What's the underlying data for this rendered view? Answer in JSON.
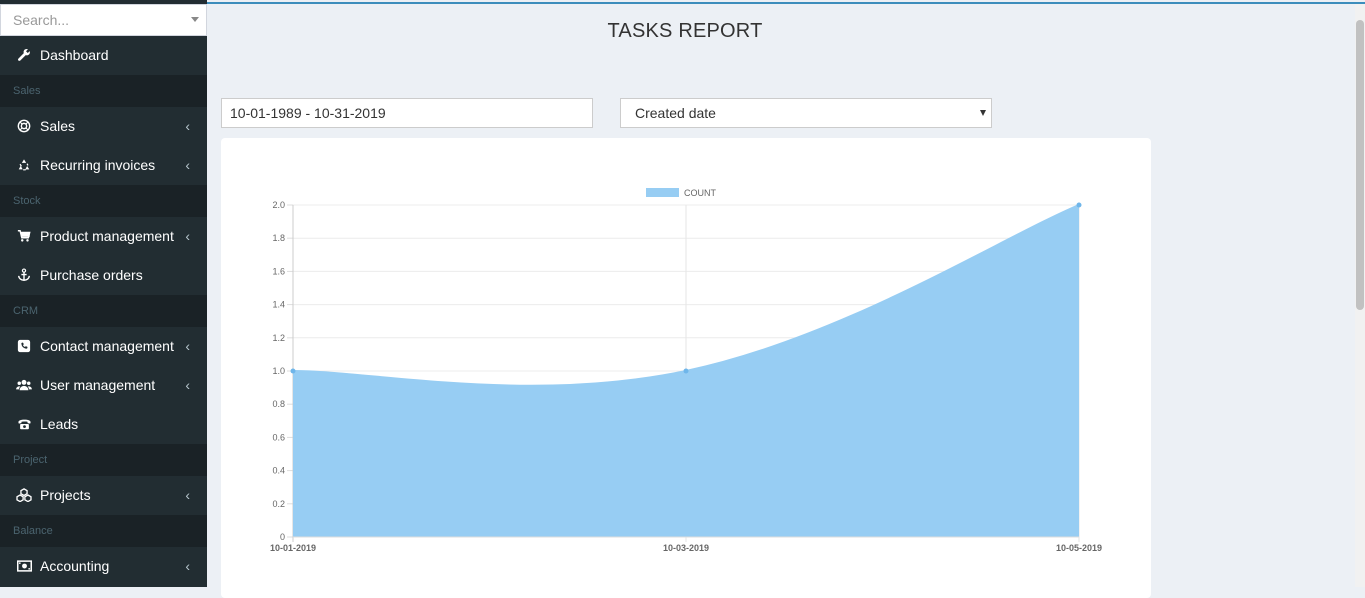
{
  "search": {
    "placeholder": "Search..."
  },
  "sidebar": {
    "items": [
      {
        "type": "item",
        "label": "Dashboard",
        "icon": "wrench-icon",
        "chevron": false
      },
      {
        "type": "header",
        "label": "Sales"
      },
      {
        "type": "item",
        "label": "Sales",
        "icon": "globe-icon",
        "chevron": true
      },
      {
        "type": "item",
        "label": "Recurring invoices",
        "icon": "recycle-icon",
        "chevron": true
      },
      {
        "type": "header",
        "label": "Stock"
      },
      {
        "type": "item",
        "label": "Product management",
        "icon": "cart-icon",
        "chevron": true
      },
      {
        "type": "item",
        "label": "Purchase orders",
        "icon": "anchor-icon",
        "chevron": false
      },
      {
        "type": "header",
        "label": "CRM"
      },
      {
        "type": "item",
        "label": "Contact management",
        "icon": "phone-square-icon",
        "chevron": true
      },
      {
        "type": "item",
        "label": "User management",
        "icon": "users-icon",
        "chevron": true
      },
      {
        "type": "item",
        "label": "Leads",
        "icon": "telephone-icon",
        "chevron": false
      },
      {
        "type": "header",
        "label": "Project"
      },
      {
        "type": "item",
        "label": "Projects",
        "icon": "cubes-icon",
        "chevron": true
      },
      {
        "type": "header",
        "label": "Balance"
      },
      {
        "type": "item",
        "label": "Accounting",
        "icon": "money-icon",
        "chevron": true
      }
    ]
  },
  "page": {
    "title": "TASKS REPORT"
  },
  "filters": {
    "date_range": "10-01-1989 - 10-31-2019",
    "date_field": "Created date"
  },
  "chart_data": {
    "type": "area",
    "x": [
      "10-01-2019",
      "10-03-2019",
      "10-05-2019"
    ],
    "series": [
      {
        "name": "COUNT",
        "values": [
          1,
          1,
          2
        ],
        "color": "#97cdf3"
      }
    ],
    "ylim": [
      0,
      2
    ],
    "yticks": [
      "2.0",
      "1.8",
      "1.6",
      "1.4",
      "1.2",
      "1.0",
      "0.8",
      "0.6",
      "0.4",
      "0.2",
      "0"
    ],
    "legend": "top",
    "grid": true
  },
  "colors": {
    "sidebar_bg": "#222d32",
    "sidebar_header_bg": "#1a2226",
    "accent": "#3c8dbc",
    "area_fill": "#97cdf3"
  }
}
